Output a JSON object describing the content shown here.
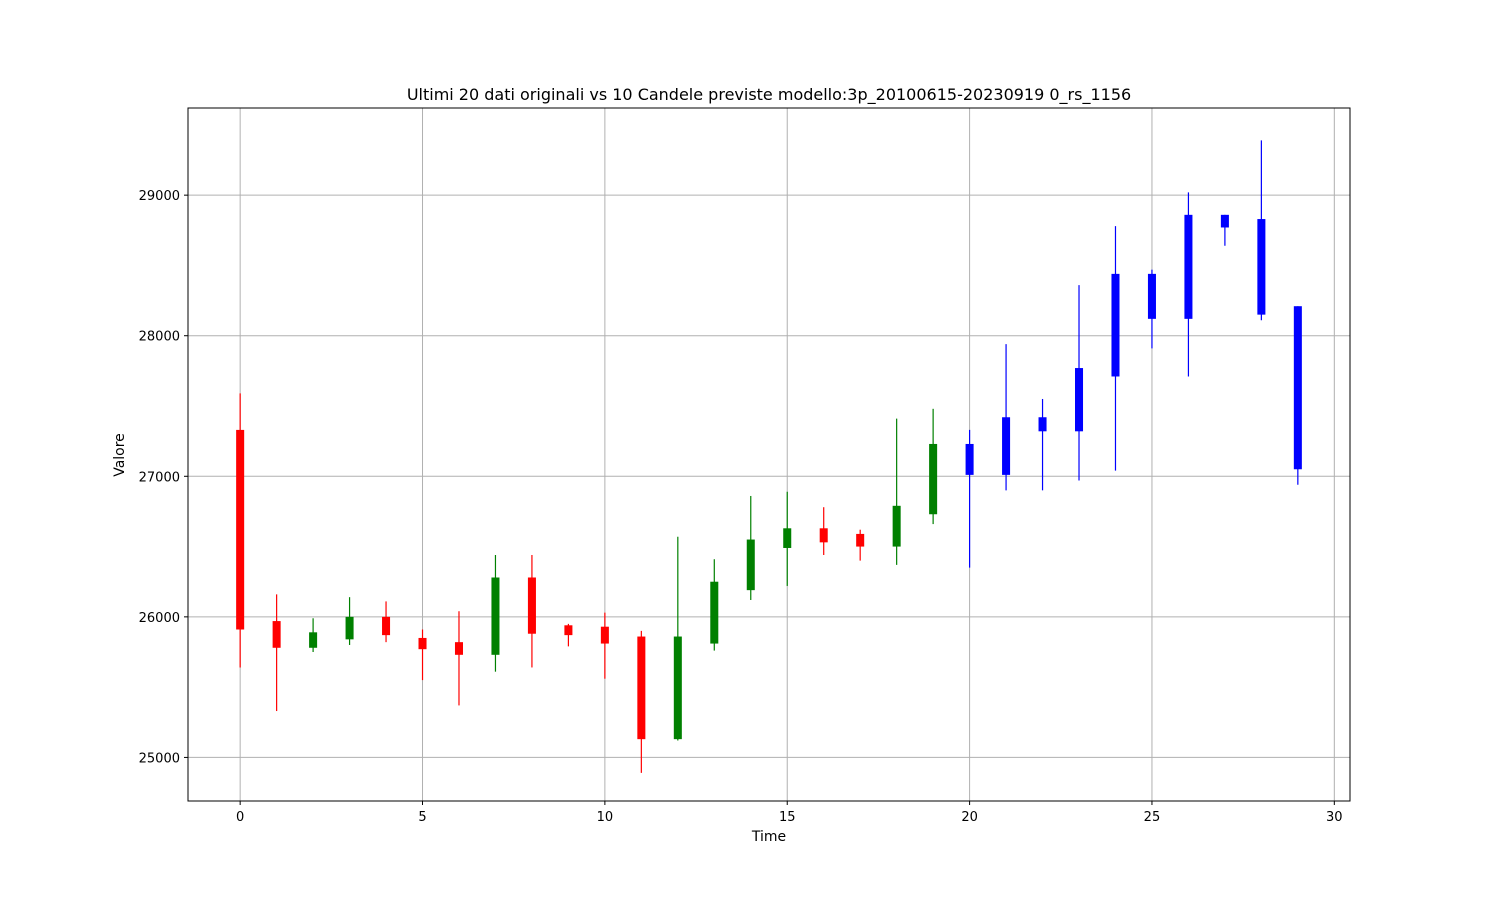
{
  "chart_data": {
    "type": "candlestick",
    "title": "Ultimi 20 dati originali vs 10 Candele previste modello:3p_20100615-20230919 0_rs_1156",
    "xlabel": "Time",
    "ylabel": "Valore",
    "xlim": [
      -1.43,
      30.43
    ],
    "ylim": [
      24690,
      29620
    ],
    "xticks": [
      0,
      5,
      10,
      15,
      20,
      25,
      30
    ],
    "yticks": [
      25000,
      26000,
      27000,
      28000,
      29000
    ],
    "grid": true,
    "legend": "none",
    "colors": {
      "up": "#008000",
      "down": "#ff0000",
      "predicted": "#0000ff",
      "grid": "#b0b0b0",
      "axes": "#000000"
    },
    "candles": [
      {
        "x": 0,
        "open": 27330,
        "high": 27590,
        "low": 25640,
        "close": 25910,
        "type": "original"
      },
      {
        "x": 1,
        "open": 25970,
        "high": 26160,
        "low": 25330,
        "close": 25780,
        "type": "original"
      },
      {
        "x": 2,
        "open": 25780,
        "high": 25990,
        "low": 25750,
        "close": 25890,
        "type": "original"
      },
      {
        "x": 3,
        "open": 25840,
        "high": 26140,
        "low": 25800,
        "close": 26000,
        "type": "original"
      },
      {
        "x": 4,
        "open": 26000,
        "high": 26110,
        "low": 25820,
        "close": 25870,
        "type": "original"
      },
      {
        "x": 5,
        "open": 25850,
        "high": 25910,
        "low": 25550,
        "close": 25770,
        "type": "original"
      },
      {
        "x": 6,
        "open": 25820,
        "high": 26040,
        "low": 25370,
        "close": 25730,
        "type": "original"
      },
      {
        "x": 7,
        "open": 25730,
        "high": 26440,
        "low": 25610,
        "close": 26280,
        "type": "original"
      },
      {
        "x": 8,
        "open": 26280,
        "high": 26440,
        "low": 25640,
        "close": 25880,
        "type": "original"
      },
      {
        "x": 9,
        "open": 25940,
        "high": 25950,
        "low": 25790,
        "close": 25870,
        "type": "original"
      },
      {
        "x": 10,
        "open": 25930,
        "high": 26030,
        "low": 25560,
        "close": 25810,
        "type": "original"
      },
      {
        "x": 11,
        "open": 25860,
        "high": 25900,
        "low": 24890,
        "close": 25130,
        "type": "original"
      },
      {
        "x": 12,
        "open": 25130,
        "high": 26570,
        "low": 25120,
        "close": 25860,
        "type": "original"
      },
      {
        "x": 13,
        "open": 25810,
        "high": 26410,
        "low": 25760,
        "close": 26250,
        "type": "original"
      },
      {
        "x": 14,
        "open": 26190,
        "high": 26860,
        "low": 26120,
        "close": 26550,
        "type": "original"
      },
      {
        "x": 15,
        "open": 26490,
        "high": 26890,
        "low": 26220,
        "close": 26630,
        "type": "original"
      },
      {
        "x": 16,
        "open": 26630,
        "high": 26780,
        "low": 26440,
        "close": 26530,
        "type": "original"
      },
      {
        "x": 17,
        "open": 26590,
        "high": 26620,
        "low": 26400,
        "close": 26500,
        "type": "original"
      },
      {
        "x": 18,
        "open": 26500,
        "high": 27410,
        "low": 26370,
        "close": 26790,
        "type": "original"
      },
      {
        "x": 19,
        "open": 26730,
        "high": 27480,
        "low": 26660,
        "close": 27230,
        "type": "original"
      },
      {
        "x": 20,
        "open": 27230,
        "high": 27330,
        "low": 26350,
        "close": 27010,
        "type": "predicted"
      },
      {
        "x": 21,
        "open": 27010,
        "high": 27940,
        "low": 26900,
        "close": 27420,
        "type": "predicted"
      },
      {
        "x": 22,
        "open": 27420,
        "high": 27550,
        "low": 26900,
        "close": 27320,
        "type": "predicted"
      },
      {
        "x": 23,
        "open": 27320,
        "high": 28360,
        "low": 26970,
        "close": 27770,
        "type": "predicted"
      },
      {
        "x": 24,
        "open": 27710,
        "high": 28780,
        "low": 27040,
        "close": 28440,
        "type": "predicted"
      },
      {
        "x": 25,
        "open": 28440,
        "high": 28470,
        "low": 27910,
        "close": 28120,
        "type": "predicted"
      },
      {
        "x": 26,
        "open": 28120,
        "high": 29020,
        "low": 27710,
        "close": 28860,
        "type": "predicted"
      },
      {
        "x": 27,
        "open": 28860,
        "high": 28860,
        "low": 28640,
        "close": 28770,
        "type": "predicted"
      },
      {
        "x": 28,
        "open": 28830,
        "high": 29390,
        "low": 28110,
        "close": 28150,
        "type": "predicted"
      },
      {
        "x": 29,
        "open": 28210,
        "high": 28210,
        "low": 26940,
        "close": 27050,
        "type": "predicted"
      }
    ]
  }
}
